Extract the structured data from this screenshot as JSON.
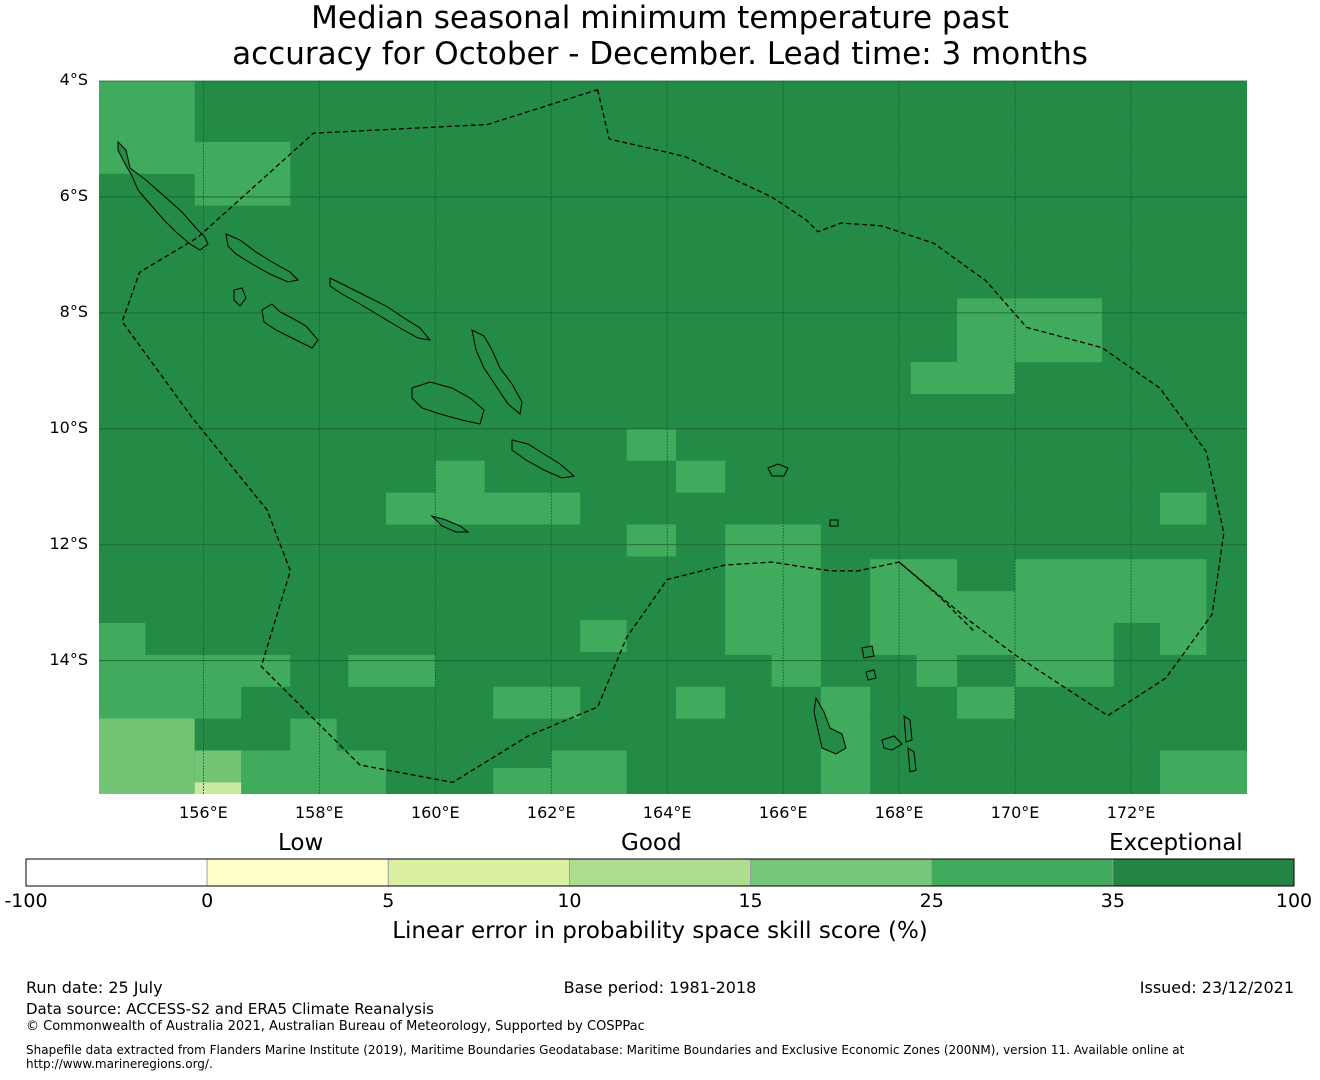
{
  "title": {
    "line1": "Median seasonal minimum temperature past",
    "line2": "accuracy for October - December. Lead time: 3 months"
  },
  "map": {
    "lon_range": [
      154.2,
      174.0
    ],
    "lat_range": [
      -16.3,
      -4.0
    ],
    "lat_ticks": [
      "4°S",
      "6°S",
      "8°S",
      "10°S",
      "12°S",
      "14°S"
    ],
    "lon_ticks": [
      "156°E",
      "158°E",
      "160°E",
      "162°E",
      "164°E",
      "166°E",
      "168°E",
      "170°E",
      "172°E"
    ],
    "base_color": "#238b45",
    "cell_colors": {
      "a": "#41ab5d",
      "b": "#74c476",
      "c": "#c7e9a0"
    },
    "grid_cells": [
      {
        "c": "a",
        "lon": [
          154.2,
          155.85
        ],
        "lat": [
          -4.0,
          -5.05
        ]
      },
      {
        "c": "a",
        "lon": [
          154.2,
          155.85
        ],
        "lat": [
          -5.05,
          -5.6
        ]
      },
      {
        "c": "a",
        "lon": [
          155.02,
          157.5
        ],
        "lat": [
          -5.05,
          -5.6
        ]
      },
      {
        "c": "a",
        "lon": [
          155.85,
          157.5
        ],
        "lat": [
          -5.6,
          -6.15
        ]
      },
      {
        "c": "a",
        "lon": [
          169.0,
          170.66
        ],
        "lat": [
          -7.75,
          -8.85
        ]
      },
      {
        "c": "a",
        "lon": [
          170.66,
          171.5
        ],
        "lat": [
          -7.75,
          -8.85
        ]
      },
      {
        "c": "a",
        "lon": [
          168.2,
          170.0
        ],
        "lat": [
          -8.85,
          -9.4
        ]
      },
      {
        "c": "a",
        "lon": [
          163.3,
          164.15
        ],
        "lat": [
          -10.0,
          -10.55
        ]
      },
      {
        "c": "a",
        "lon": [
          164.15,
          165.0
        ],
        "lat": [
          -10.55,
          -11.1
        ]
      },
      {
        "c": "a",
        "lon": [
          160.0,
          160.85
        ],
        "lat": [
          -10.55,
          -11.1
        ]
      },
      {
        "c": "a",
        "lon": [
          159.15,
          162.5
        ],
        "lat": [
          -11.1,
          -11.65
        ]
      },
      {
        "c": "a",
        "lon": [
          163.3,
          164.15
        ],
        "lat": [
          -11.65,
          -12.2
        ]
      },
      {
        "c": "a",
        "lon": [
          165.0,
          166.65
        ],
        "lat": [
          -11.65,
          -12.25
        ]
      },
      {
        "c": "a",
        "lon": [
          165.0,
          166.65
        ],
        "lat": [
          -12.25,
          -13.9
        ]
      },
      {
        "c": "a",
        "lon": [
          162.5,
          163.3
        ],
        "lat": [
          -13.3,
          -13.85
        ]
      },
      {
        "c": "a",
        "lon": [
          172.5,
          173.3
        ],
        "lat": [
          -11.1,
          -11.65
        ]
      },
      {
        "c": "a",
        "lon": [
          167.5,
          169.0
        ],
        "lat": [
          -12.25,
          -12.8
        ]
      },
      {
        "c": "a",
        "lon": [
          167.5,
          170.0
        ],
        "lat": [
          -12.8,
          -13.35
        ]
      },
      {
        "c": "a",
        "lon": [
          170.0,
          173.3
        ],
        "lat": [
          -12.25,
          -12.8
        ]
      },
      {
        "c": "a",
        "lon": [
          170.0,
          173.3
        ],
        "lat": [
          -12.8,
          -13.35
        ]
      },
      {
        "c": "a",
        "lon": [
          168.3,
          171.7
        ],
        "lat": [
          -13.35,
          -13.9
        ]
      },
      {
        "c": "a",
        "lon": [
          172.5,
          173.3
        ],
        "lat": [
          -13.35,
          -13.9
        ]
      },
      {
        "c": "a",
        "lon": [
          167.5,
          168.3
        ],
        "lat": [
          -13.35,
          -13.9
        ]
      },
      {
        "c": "a",
        "lon": [
          168.3,
          169.0
        ],
        "lat": [
          -13.9,
          -14.45
        ]
      },
      {
        "c": "a",
        "lon": [
          170.0,
          171.7
        ],
        "lat": [
          -13.9,
          -14.45
        ]
      },
      {
        "c": "a",
        "lon": [
          165.8,
          166.65
        ],
        "lat": [
          -13.9,
          -14.45
        ]
      },
      {
        "c": "a",
        "lon": [
          166.65,
          167.5
        ],
        "lat": [
          -14.45,
          -15.0
        ]
      },
      {
        "c": "a",
        "lon": [
          166.65,
          167.5
        ],
        "lat": [
          -15.0,
          -16.3
        ]
      },
      {
        "c": "a",
        "lon": [
          169.0,
          170.0
        ],
        "lat": [
          -14.45,
          -15.0
        ]
      },
      {
        "c": "a",
        "lon": [
          164.15,
          165.0
        ],
        "lat": [
          -14.45,
          -15.0
        ]
      },
      {
        "c": "a",
        "lon": [
          154.2,
          155.0
        ],
        "lat": [
          -13.35,
          -13.9
        ]
      },
      {
        "c": "a",
        "lon": [
          154.2,
          157.5
        ],
        "lat": [
          -13.9,
          -14.45
        ]
      },
      {
        "c": "a",
        "lon": [
          154.2,
          156.65
        ],
        "lat": [
          -14.45,
          -15.0
        ]
      },
      {
        "c": "a",
        "lon": [
          157.5,
          158.3
        ],
        "lat": [
          -15.0,
          -15.55
        ]
      },
      {
        "c": "a",
        "lon": [
          156.65,
          158.3
        ],
        "lat": [
          -15.55,
          -16.3
        ]
      },
      {
        "c": "a",
        "lon": [
          158.3,
          159.15
        ],
        "lat": [
          -15.55,
          -16.3
        ]
      },
      {
        "c": "a",
        "lon": [
          158.5,
          160.0
        ],
        "lat": [
          -13.9,
          -14.45
        ]
      },
      {
        "c": "a",
        "lon": [
          161.0,
          162.5
        ],
        "lat": [
          -14.45,
          -15.0
        ]
      },
      {
        "c": "a",
        "lon": [
          162.0,
          163.3
        ],
        "lat": [
          -15.55,
          -16.3
        ]
      },
      {
        "c": "a",
        "lon": [
          161.0,
          162.0
        ],
        "lat": [
          -15.85,
          -16.3
        ]
      },
      {
        "c": "a",
        "lon": [
          172.5,
          174.0
        ],
        "lat": [
          -15.55,
          -16.3
        ]
      },
      {
        "c": "b",
        "lon": [
          154.2,
          155.85
        ],
        "lat": [
          -15.0,
          -16.3
        ]
      },
      {
        "c": "b",
        "lon": [
          155.85,
          156.65
        ],
        "lat": [
          -15.55,
          -16.3
        ]
      },
      {
        "c": "c",
        "lon": [
          155.85,
          156.65
        ],
        "lat": [
          -16.1,
          -16.3
        ]
      }
    ],
    "eez": [
      [
        162.8,
        -4.15
      ],
      [
        163.0,
        -5.0
      ],
      [
        164.3,
        -5.3
      ],
      [
        165.8,
        -6.0
      ],
      [
        166.4,
        -6.4
      ],
      [
        166.6,
        -6.6
      ],
      [
        167.0,
        -6.45
      ],
      [
        167.7,
        -6.5
      ],
      [
        168.6,
        -6.8
      ],
      [
        169.5,
        -7.45
      ],
      [
        170.2,
        -8.25
      ],
      [
        171.5,
        -8.6
      ],
      [
        172.5,
        -9.3
      ],
      [
        173.3,
        -10.4
      ],
      [
        173.6,
        -11.8
      ],
      [
        173.4,
        -13.2
      ],
      [
        172.6,
        -14.3
      ],
      [
        171.6,
        -14.95
      ],
      [
        170.0,
        -13.9
      ],
      [
        169.2,
        -13.3
      ],
      [
        168.0,
        -12.3
      ],
      [
        167.3,
        -12.45
      ],
      [
        166.8,
        -12.45
      ],
      [
        165.8,
        -12.3
      ],
      [
        165.0,
        -12.35
      ],
      [
        164.0,
        -12.6
      ],
      [
        163.3,
        -13.6
      ],
      [
        162.8,
        -14.8
      ],
      [
        161.6,
        -15.3
      ],
      [
        160.3,
        -16.1
      ],
      [
        158.7,
        -15.8
      ],
      [
        157.0,
        -14.1
      ],
      [
        157.5,
        -12.45
      ],
      [
        157.1,
        -11.4
      ],
      [
        155.8,
        -9.8
      ],
      [
        154.6,
        -8.15
      ],
      [
        154.9,
        -7.3
      ],
      [
        155.9,
        -6.7
      ],
      [
        157.9,
        -4.9
      ],
      [
        160.9,
        -4.75
      ],
      [
        162.8,
        -4.15
      ]
    ],
    "eez_secondary": [
      [
        168.0,
        -12.3
      ],
      [
        168.7,
        -12.9
      ],
      [
        169.3,
        -13.5
      ]
    ]
  },
  "colorbar": {
    "categories": [
      "Low",
      "Good",
      "Exceptional"
    ],
    "ticks": [
      "-100",
      "0",
      "5",
      "10",
      "15",
      "25",
      "35",
      "100"
    ],
    "colors": [
      "#ffffff",
      "#ffffcc",
      "#d9f0a3",
      "#addd8e",
      "#78c679",
      "#41ab5d",
      "#238443"
    ],
    "label": "Linear error in probability space skill score (%)"
  },
  "footer": {
    "run_date": "Run date: 25 July",
    "base_period": "Base period: 1981-2018",
    "issued": "Issued: 23/12/2021",
    "data_source": "Data source: ACCESS-S2 and ERA5 Climate Reanalysis",
    "copyright": "© Commonwealth of Australia 2021, Australian Bureau of Meteorology, Supported by COSPPac",
    "shapefile_line1": "Shapefile data extracted from Flanders Marine Institute (2019), Maritime Boundaries Geodatabase: Maritime Boundaries and Exclusive Economic Zones (200NM), version 11. Available online at",
    "shapefile_line2": "http://www.marineregions.org/."
  }
}
